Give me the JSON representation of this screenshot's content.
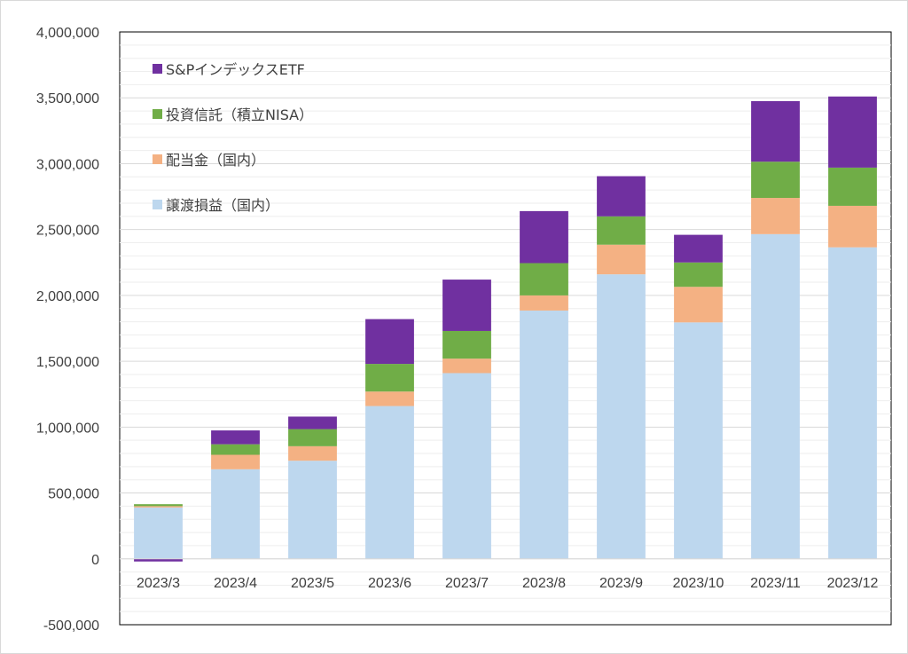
{
  "chart_data": {
    "type": "bar",
    "stacked": true,
    "categories": [
      "2023/3",
      "2023/4",
      "2023/5",
      "2023/6",
      "2023/7",
      "2023/8",
      "2023/9",
      "2023/10",
      "2023/11",
      "2023/12"
    ],
    "ylim": [
      -500000,
      4000000
    ],
    "y_ticks": [
      {
        "value": 4000000,
        "label": "4,000,000"
      },
      {
        "value": 3500000,
        "label": "3,500,000"
      },
      {
        "value": 3000000,
        "label": "3,000,000"
      },
      {
        "value": 2500000,
        "label": "2,500,000"
      },
      {
        "value": 2000000,
        "label": "2,000,000"
      },
      {
        "value": 1500000,
        "label": "1,500,000"
      },
      {
        "value": 1000000,
        "label": "1,000,000"
      },
      {
        "value": 500000,
        "label": "500,000"
      },
      {
        "value": 0,
        "label": "0"
      },
      {
        "value": -500000,
        "label": "-500,000"
      }
    ],
    "grid": true,
    "legend_position": "top-left",
    "series": [
      {
        "name": "譲渡損益（国内）",
        "color": "#bdd7ee",
        "values": [
          390000,
          680000,
          745000,
          1160000,
          1410000,
          1885000,
          2160000,
          1795000,
          2465000,
          2365000
        ]
      },
      {
        "name": "配当金（国内）",
        "color": "#f4b183",
        "values": [
          10000,
          110000,
          110000,
          110000,
          110000,
          115000,
          225000,
          270000,
          275000,
          315000
        ]
      },
      {
        "name": "投資信託（積立NISA）",
        "color": "#70ad47",
        "values": [
          15000,
          80000,
          130000,
          210000,
          210000,
          245000,
          215000,
          185000,
          275000,
          290000
        ]
      },
      {
        "name": "S&Pインデックス ETF",
        "legend_label": "S&PインデックスETF",
        "color": "#7030a0",
        "values": [
          -20000,
          105000,
          95000,
          340000,
          390000,
          395000,
          305000,
          210000,
          460000,
          540000
        ]
      }
    ]
  }
}
